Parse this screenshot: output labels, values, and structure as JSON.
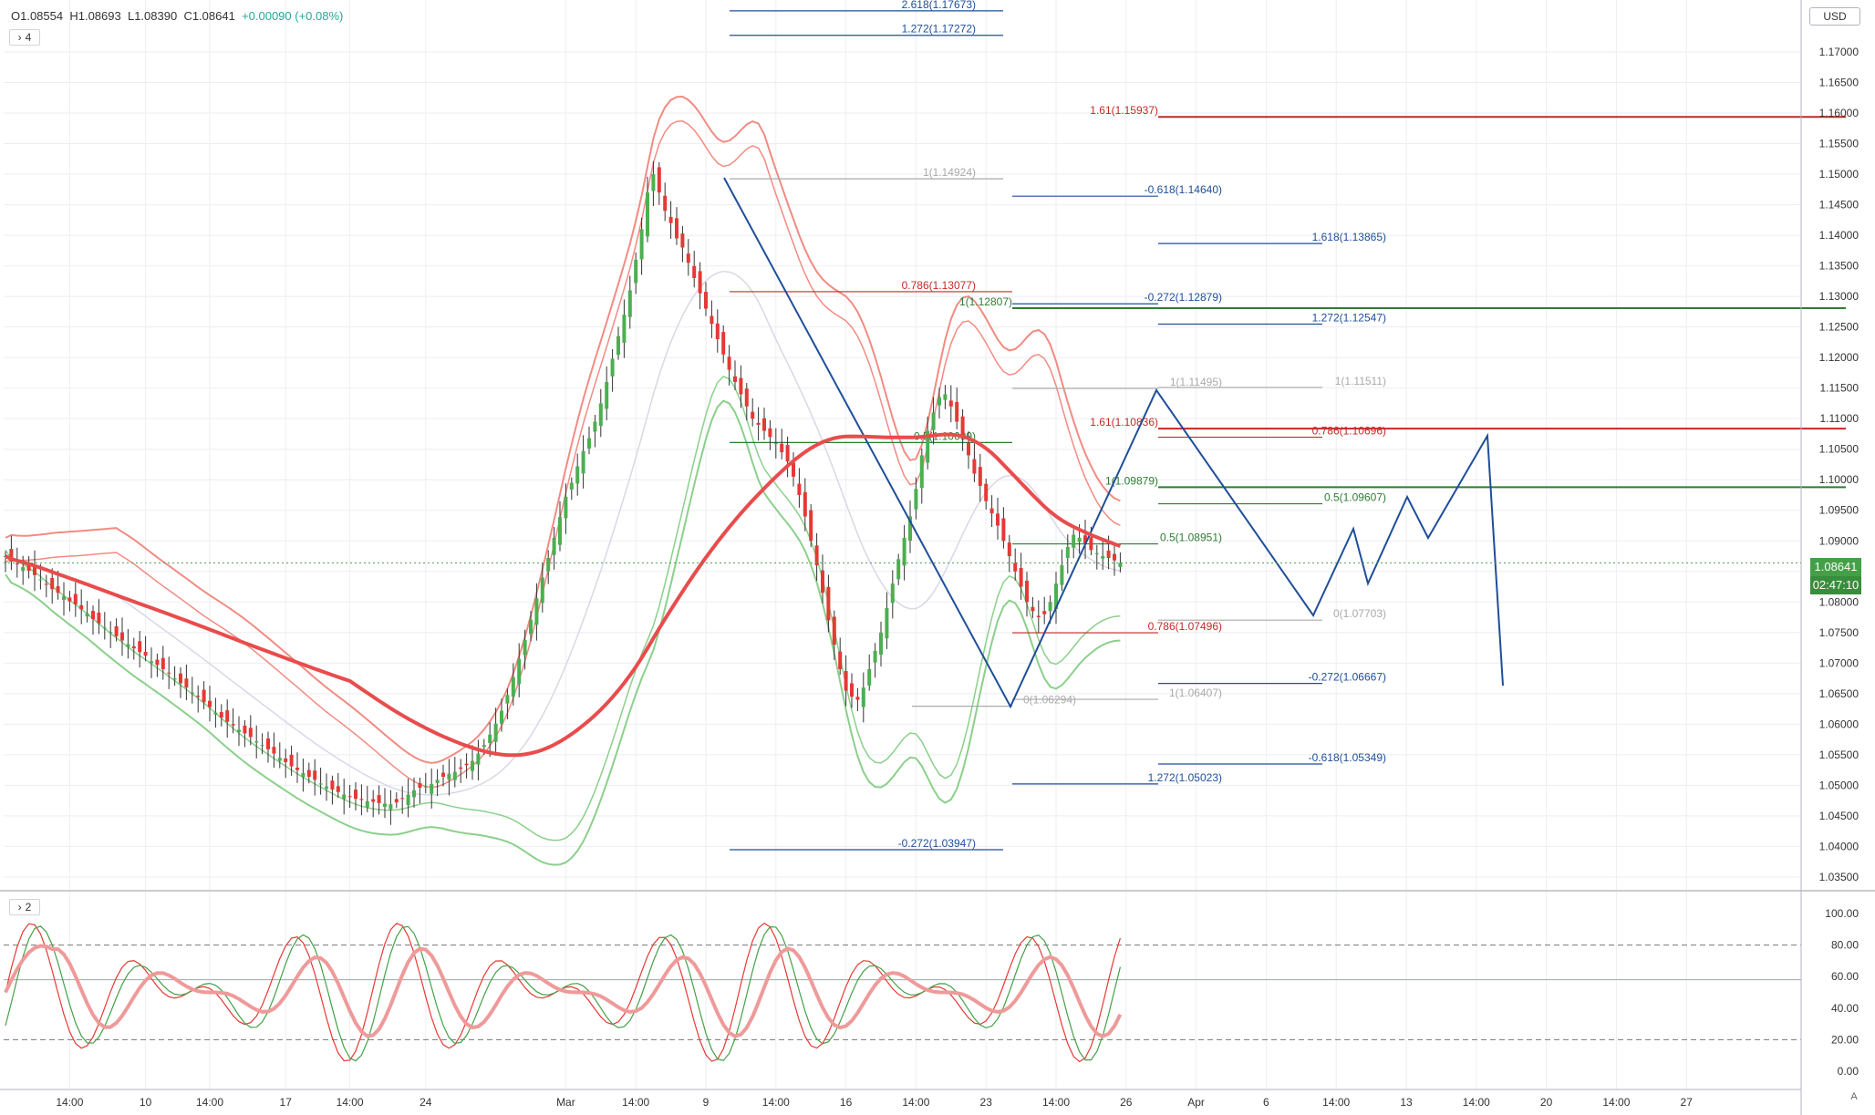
{
  "legend": {
    "open": "O1.08554",
    "high": "H1.08693",
    "low": "L1.08390",
    "close": "C1.08641",
    "change": "+0.00090 (+0.08%)"
  },
  "panes": {
    "main_collapsed_count": "4",
    "osc_collapsed_count": "2"
  },
  "currency": "USD",
  "last_price": {
    "value": "1.08641",
    "countdown": "02:47:10"
  },
  "corner_label": "A",
  "colors": {
    "up": "#4caf50",
    "down": "#e53935",
    "ma": "#e84c4c",
    "ma_green": "#52a852",
    "band_red": "#f28b82",
    "band_green": "#8bd08b",
    "blue": "#1f4e99",
    "grid": "#eceef2"
  },
  "chart_data": {
    "type": "candlestick",
    "y_axis": {
      "range": [
        1.0335,
        1.1785
      ],
      "ticks": [
        "1.17000",
        "1.16500",
        "1.16000",
        "1.15500",
        "1.15000",
        "1.14500",
        "1.14000",
        "1.13500",
        "1.13000",
        "1.12500",
        "1.12000",
        "1.11500",
        "1.11000",
        "1.10500",
        "1.10000",
        "1.09500",
        "1.09000",
        "1.08500",
        "1.08000",
        "1.07500",
        "1.07000",
        "1.06500",
        "1.06000",
        "1.05500",
        "1.05000",
        "1.04500",
        "1.04000",
        "1.03500"
      ]
    },
    "x_axis": {
      "ticks": [
        {
          "label": "14:00",
          "i": 11
        },
        {
          "label": "10",
          "i": 24
        },
        {
          "label": "14:00",
          "i": 35
        },
        {
          "label": "17",
          "i": 48
        },
        {
          "label": "14:00",
          "i": 59
        },
        {
          "label": "24",
          "i": 72
        },
        {
          "label": "Mar",
          "i": 96
        },
        {
          "label": "14:00",
          "i": 108
        },
        {
          "label": "9",
          "i": 120
        },
        {
          "label": "14:00",
          "i": 132
        },
        {
          "label": "16",
          "i": 144
        },
        {
          "label": "14:00",
          "i": 156
        },
        {
          "label": "23",
          "i": 168
        },
        {
          "label": "14:00",
          "i": 180
        },
        {
          "label": "26",
          "i": 192
        },
        {
          "label": "Apr",
          "i": 204
        },
        {
          "label": "6",
          "i": 216
        },
        {
          "label": "14:00",
          "i": 228
        },
        {
          "label": "13",
          "i": 240
        },
        {
          "label": "14:00",
          "i": 252
        },
        {
          "label": "20",
          "i": 264
        },
        {
          "label": "14:00",
          "i": 276
        },
        {
          "label": "27",
          "i": 288
        }
      ]
    },
    "close_series": [
      1.0875,
      1.0866,
      1.0862,
      1.0857,
      1.0851,
      1.0844,
      1.0837,
      1.0829,
      1.0821,
      1.0815,
      1.0809,
      1.0801,
      1.0796,
      1.0788,
      1.0781,
      1.0772,
      1.0765,
      1.0758,
      1.0751,
      1.0744,
      1.0737,
      1.0731,
      1.0724,
      1.0718,
      1.0712,
      1.0703,
      1.0697,
      1.069,
      1.0683,
      1.0675,
      1.0667,
      1.066,
      1.0652,
      1.0645,
      1.0636,
      1.0628,
      1.0619,
      1.0611,
      1.0604,
      1.0598,
      1.0591,
      1.0585,
      1.0579,
      1.0572,
      1.0566,
      1.0559,
      1.0552,
      1.0545,
      1.0538,
      1.0531,
      1.0525,
      1.052,
      1.0514,
      1.0509,
      1.0503,
      1.0498,
      1.0493,
      1.0489,
      1.0485,
      1.0481,
      1.0478,
      1.0476,
      1.0474,
      1.0473,
      1.0471,
      1.047,
      1.0469,
      1.0472,
      1.0478,
      1.0485,
      1.0492,
      1.0496,
      1.0498,
      1.0502,
      1.0509,
      1.0514,
      1.0519,
      1.0522,
      1.0527,
      1.0533,
      1.054,
      1.0552,
      1.0566,
      1.0583,
      1.0601,
      1.0622,
      1.0648,
      1.0677,
      1.0707,
      1.0738,
      1.0771,
      1.0806,
      1.084,
      1.0872,
      1.0905,
      1.0939,
      1.0972,
      1.0995,
      1.1022,
      1.1047,
      1.1068,
      1.1095,
      1.1125,
      1.116,
      1.1198,
      1.1235,
      1.127,
      1.131,
      1.136,
      1.141,
      1.147,
      1.15,
      1.147,
      1.144,
      1.142,
      1.1395,
      1.138,
      1.1355,
      1.133,
      1.1305,
      1.128,
      1.1255,
      1.123,
      1.1205,
      1.118,
      1.116,
      1.114,
      1.112,
      1.11,
      1.109,
      1.108,
      1.107,
      1.106,
      1.1045,
      1.103,
      1.1005,
      1.0975,
      1.094,
      1.09,
      1.086,
      1.0815,
      1.077,
      1.073,
      1.069,
      1.0655,
      1.0645,
      1.064,
      1.066,
      1.069,
      1.072,
      1.075,
      1.079,
      1.083,
      1.087,
      1.0905,
      1.094,
      1.0985,
      1.104,
      1.108,
      1.111,
      1.1135,
      1.114,
      1.112,
      1.1095,
      1.107,
      1.104,
      1.101,
      1.099,
      1.0965,
      1.0945,
      1.0925,
      1.09,
      1.0875,
      1.085,
      1.0825,
      1.08,
      1.0785,
      1.0775,
      1.078,
      1.08,
      1.083,
      1.086,
      1.089,
      1.091,
      1.0905,
      1.0895,
      1.0885,
      1.088,
      1.0875,
      1.0872,
      1.0868,
      1.0864
    ],
    "fib_levels": [
      {
        "label": "2.618(1.17673)",
        "price": 1.17673,
        "color": "blue"
      },
      {
        "label": "1.272(1.17272)",
        "price": 1.17272,
        "color": "blue"
      },
      {
        "label": "1.61(1.15937)",
        "price": 1.15937,
        "color": "red"
      },
      {
        "label": "1(1.14924)",
        "price": 1.14924,
        "color": "gray"
      },
      {
        "label": "-0.618(1.14640)",
        "price": 1.1464,
        "color": "blue"
      },
      {
        "label": "1.618(1.13865)",
        "price": 1.13865,
        "color": "blue"
      },
      {
        "label": "0.786(1.13077)",
        "price": 1.13077,
        "color": "red"
      },
      {
        "label": "1(1.12807)",
        "price": 1.12807,
        "color": "green"
      },
      {
        "label": "-0.272(1.12879)",
        "price": 1.12879,
        "color": "blue"
      },
      {
        "label": "1.272(1.12547)",
        "price": 1.12547,
        "color": "blue"
      },
      {
        "label": "1(1.11495)",
        "price": 1.11495,
        "color": "gray"
      },
      {
        "label": "1(1.11511)",
        "price": 1.11511,
        "color": "gray"
      },
      {
        "label": "1.61(1.10836)",
        "price": 1.10836,
        "color": "red"
      },
      {
        "label": "0.786(1.10696)",
        "price": 1.10696,
        "color": "red"
      },
      {
        "label": "0.5(1.10609)",
        "price": 1.10609,
        "color": "green"
      },
      {
        "label": "1(1.09879)",
        "price": 1.09879,
        "color": "green"
      },
      {
        "label": "0.5(1.09607)",
        "price": 1.09607,
        "color": "green"
      },
      {
        "label": "0.5(1.08951)",
        "price": 1.08951,
        "color": "green"
      },
      {
        "label": "0(1.07703)",
        "price": 1.07703,
        "color": "gray"
      },
      {
        "label": "0.786(1.07496)",
        "price": 1.07496,
        "color": "red"
      },
      {
        "label": "-0.272(1.06667)",
        "price": 1.06667,
        "color": "blue"
      },
      {
        "label": "1(1.06407)",
        "price": 1.06407,
        "color": "gray"
      },
      {
        "label": "0(1.06294)",
        "price": 1.06294,
        "color": "gray"
      },
      {
        "label": "-0.618(1.05349)",
        "price": 1.05349,
        "color": "blue"
      },
      {
        "label": "1.272(1.05023)",
        "price": 1.05023,
        "color": "blue"
      },
      {
        "label": "-0.272(1.03947)",
        "price": 1.03947,
        "color": "blue"
      }
    ],
    "oscillator": {
      "range": [
        0,
        100
      ],
      "ticks": [
        "100.00",
        "80.00",
        "60.00",
        "40.00",
        "20.00",
        "0.00"
      ],
      "dashed_levels": [
        80,
        20
      ],
      "solid_level": 58
    }
  }
}
